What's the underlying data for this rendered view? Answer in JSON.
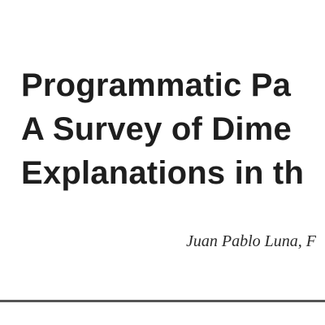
{
  "document": {
    "title_lines": [
      "Programmatic Pa",
      "A Survey of Dime",
      "Explanations in th"
    ],
    "authors": "Juan Pablo Luna, F"
  }
}
